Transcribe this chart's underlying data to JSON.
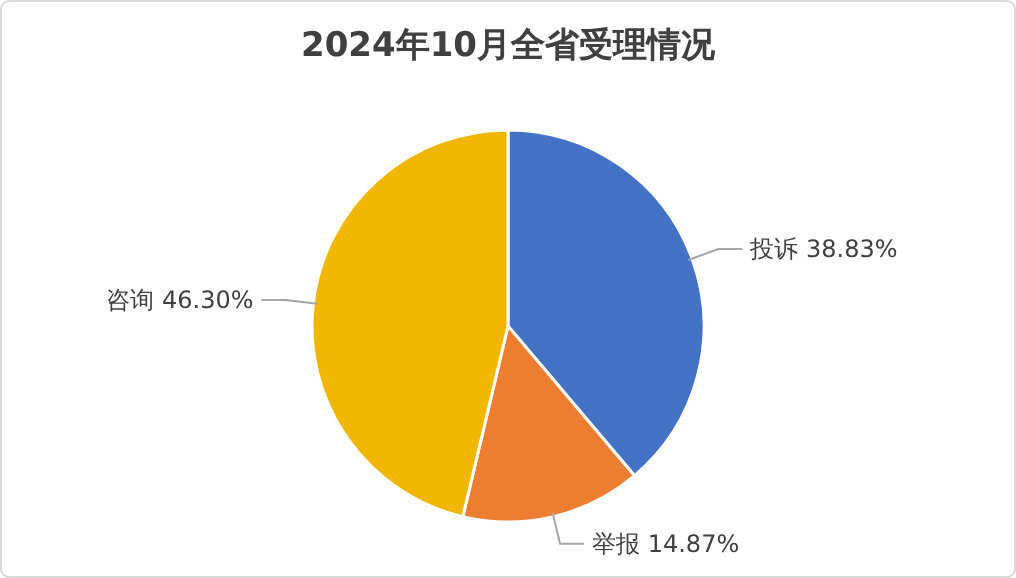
{
  "chart_data": {
    "type": "pie",
    "title": "2024年10月全省受理情况",
    "categories": [
      "投诉",
      "举报",
      "咨询"
    ],
    "values": [
      38.83,
      14.87,
      46.3
    ],
    "value_labels": [
      "38.83%",
      "14.87%",
      "46.30%"
    ],
    "colors": [
      "#4472c4",
      "#ed7d31",
      "#f1b700"
    ],
    "data_labels": true
  }
}
